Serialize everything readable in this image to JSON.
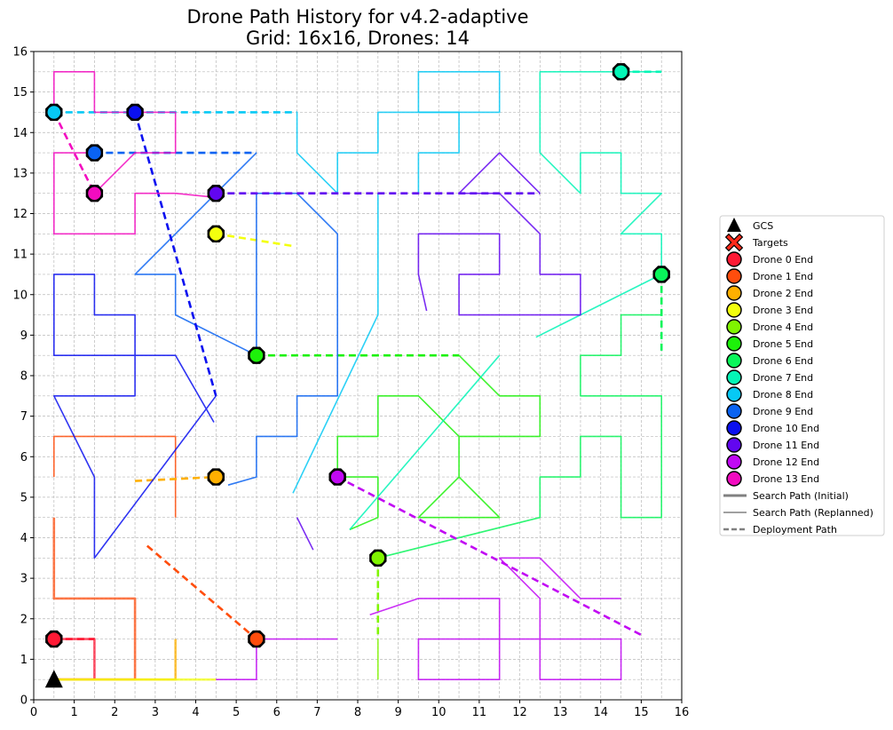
{
  "chart_data": {
    "type": "line",
    "title": "Drone Path History for v4.2-adaptive",
    "subtitle": "Grid: 16x16, Drones: 14",
    "xlim": [
      0,
      16
    ],
    "ylim": [
      0,
      16
    ],
    "xticks": [
      "0",
      "1",
      "2",
      "3",
      "4",
      "5",
      "6",
      "7",
      "8",
      "9",
      "10",
      "11",
      "12",
      "13",
      "14",
      "15",
      "16"
    ],
    "yticks": [
      "0",
      "1",
      "2",
      "3",
      "4",
      "5",
      "6",
      "7",
      "8",
      "9",
      "10",
      "11",
      "12",
      "13",
      "14",
      "15",
      "16"
    ],
    "grid": true,
    "legend_position": "right",
    "gcs": {
      "name": "GCS",
      "x": 0.5,
      "y": 0.5
    },
    "legend": [
      {
        "label": "GCS",
        "kind": "gcs"
      },
      {
        "label": "Targets",
        "kind": "target",
        "color": "#ff2a1a"
      },
      {
        "label": "Drone 0 End",
        "kind": "end",
        "color": "#ff1a35"
      },
      {
        "label": "Drone 1 End",
        "kind": "end",
        "color": "#ff4d0d"
      },
      {
        "label": "Drone 2 End",
        "kind": "end",
        "color": "#ffb000"
      },
      {
        "label": "Drone 3 End",
        "kind": "end",
        "color": "#f3ff0e"
      },
      {
        "label": "Drone 4 End",
        "kind": "end",
        "color": "#80f500"
      },
      {
        "label": "Drone 5 End",
        "kind": "end",
        "color": "#1df10a"
      },
      {
        "label": "Drone 6 End",
        "kind": "end",
        "color": "#09f55a"
      },
      {
        "label": "Drone 7 End",
        "kind": "end",
        "color": "#04f5b6"
      },
      {
        "label": "Drone 8 End",
        "kind": "end",
        "color": "#07c9f5"
      },
      {
        "label": "Drone 9 End",
        "kind": "end",
        "color": "#0a63f2"
      },
      {
        "label": "Drone 10 End",
        "kind": "end",
        "color": "#0b10f0"
      },
      {
        "label": "Drone 11 End",
        "kind": "end",
        "color": "#6206f0"
      },
      {
        "label": "Drone 12 End",
        "kind": "end",
        "color": "#c109f3"
      },
      {
        "label": "Drone 13 End",
        "kind": "end",
        "color": "#f20cc0"
      },
      {
        "label": "Search Path (Initial)",
        "kind": "line-thick"
      },
      {
        "label": "Search Path (Replanned)",
        "kind": "line-thin"
      },
      {
        "label": "Deployment Path",
        "kind": "line-dash"
      }
    ],
    "series": [
      {
        "color": "#ff1a35",
        "deploy": [
          [
            0.5,
            1.5
          ],
          [
            1.5,
            1.5
          ]
        ],
        "search": [
          [
            0.5,
            1.5
          ],
          [
            1.5,
            1.5
          ],
          [
            1.5,
            0.5
          ],
          [
            0.5,
            0.5
          ]
        ],
        "end": [
          0.5,
          1.5
        ]
      },
      {
        "color": "#ff4d0d",
        "deploy": [
          [
            2.8,
            3.8
          ],
          [
            5.5,
            1.5
          ]
        ],
        "search": [
          [
            0.5,
            4.5
          ],
          [
            0.5,
            2.5
          ],
          [
            2.5,
            2.5
          ],
          [
            2.5,
            0.5
          ],
          [
            0.5,
            0.5
          ]
        ],
        "replanned": [
          [
            0.5,
            5.5
          ],
          [
            0.5,
            6.5
          ],
          [
            3.5,
            6.5
          ],
          [
            3.5,
            4.5
          ]
        ],
        "end": [
          5.5,
          1.5
        ]
      },
      {
        "color": "#ffb000",
        "deploy": [
          [
            2.5,
            5.4
          ],
          [
            4.5,
            5.5
          ]
        ],
        "search": [
          [
            3.5,
            1.5
          ],
          [
            3.5,
            0.5
          ],
          [
            0.5,
            0.5
          ]
        ],
        "end": [
          4.5,
          5.5
        ]
      },
      {
        "color": "#f3ff0e",
        "deploy": [
          [
            4.5,
            11.5
          ],
          [
            6.4,
            11.2
          ]
        ],
        "search": [
          [
            4.5,
            0.5
          ],
          [
            0.5,
            0.5
          ]
        ],
        "end": [
          4.5,
          11.5
        ]
      },
      {
        "color": "#80f500",
        "deploy": [
          [
            8.5,
            3.5
          ],
          [
            8.5,
            1.5
          ]
        ],
        "replanned": [
          [
            8.5,
            1.5
          ],
          [
            8.5,
            0.5
          ]
        ],
        "end": [
          8.5,
          3.5
        ]
      },
      {
        "color": "#1df10a",
        "deploy": [
          [
            5.5,
            8.5
          ],
          [
            10.5,
            8.5
          ]
        ],
        "replanned": [
          [
            10.5,
            8.5
          ],
          [
            11.5,
            7.5
          ],
          [
            12.5,
            7.5
          ],
          [
            12.5,
            6.5
          ],
          [
            10.5,
            6.5
          ],
          [
            10.5,
            5.5
          ],
          [
            9.5,
            4.5
          ],
          [
            10.5,
            4.5
          ],
          [
            11.5,
            4.5
          ],
          [
            10.5,
            5.5
          ],
          [
            10.5,
            6.5
          ],
          [
            9.5,
            7.5
          ],
          [
            8.5,
            7.5
          ],
          [
            8.5,
            6.5
          ],
          [
            7.5,
            6.5
          ],
          [
            7.5,
            5.5
          ],
          [
            8.5,
            5.5
          ],
          [
            8.5,
            4.5
          ],
          [
            7.8,
            4.2
          ]
        ],
        "end": [
          5.5,
          8.5
        ]
      },
      {
        "color": "#09f55a",
        "deploy": [
          [
            15.5,
            10.5
          ],
          [
            15.5,
            8.5
          ]
        ],
        "replanned": [
          [
            15.5,
            9.5
          ],
          [
            14.5,
            9.5
          ],
          [
            14.5,
            8.5
          ],
          [
            13.5,
            8.5
          ],
          [
            13.5,
            7.5
          ],
          [
            15.5,
            7.5
          ],
          [
            15.5,
            4.5
          ],
          [
            14.5,
            4.5
          ],
          [
            14.5,
            6.5
          ],
          [
            13.5,
            6.5
          ],
          [
            13.5,
            5.5
          ],
          [
            12.5,
            5.5
          ],
          [
            12.5,
            4.5
          ],
          [
            8.5,
            3.5
          ]
        ],
        "end": [
          15.5,
          10.5
        ]
      },
      {
        "color": "#04f5b6",
        "deploy": [
          [
            14.5,
            15.5
          ],
          [
            15.5,
            15.5
          ]
        ],
        "replanned": [
          [
            15.5,
            15.5
          ],
          [
            12.5,
            15.5
          ],
          [
            12.5,
            13.5
          ],
          [
            13.5,
            12.5
          ],
          [
            13.5,
            13.5
          ],
          [
            14.5,
            13.5
          ],
          [
            14.5,
            12.5
          ],
          [
            15.5,
            12.5
          ],
          [
            14.5,
            11.5
          ],
          [
            15.5,
            11.5
          ],
          [
            15.5,
            10.5
          ],
          [
            12.4,
            8.95
          ]
        ],
        "extra": [
          [
            7.8,
            4.2
          ],
          [
            11.5,
            8.5
          ]
        ],
        "end": [
          14.5,
          15.5
        ]
      },
      {
        "color": "#07c9f5",
        "deploy": [
          [
            0.5,
            14.5
          ],
          [
            6.5,
            14.5
          ]
        ],
        "replanned": [
          [
            6.5,
            14.5
          ],
          [
            6.5,
            13.5
          ],
          [
            7.5,
            12.5
          ],
          [
            7.5,
            13.5
          ],
          [
            8.5,
            13.5
          ],
          [
            8.5,
            14.5
          ],
          [
            10.5,
            14.5
          ],
          [
            10.5,
            13.5
          ],
          [
            9.5,
            13.5
          ],
          [
            9.5,
            12.5
          ]
        ],
        "extra": [
          [
            8.5,
            12.5
          ],
          [
            8.5,
            9.5
          ],
          [
            6.4,
            5.1
          ]
        ],
        "extra2": [
          [
            9.5,
            14.5
          ],
          [
            9.5,
            15.5
          ],
          [
            11.5,
            15.5
          ],
          [
            11.5,
            14.5
          ],
          [
            9.5,
            14.5
          ]
        ],
        "end": [
          0.5,
          14.5
        ]
      },
      {
        "color": "#0a63f2",
        "deploy": [
          [
            1.5,
            13.5
          ],
          [
            5.5,
            13.5
          ]
        ],
        "replanned": [
          [
            5.5,
            13.5
          ],
          [
            4.5,
            12.5
          ],
          [
            2.5,
            10.5
          ],
          [
            3.5,
            10.5
          ],
          [
            3.5,
            9.5
          ],
          [
            5.5,
            8.5
          ],
          [
            5.5,
            12.5
          ],
          [
            6.5,
            12.5
          ],
          [
            7.5,
            11.5
          ],
          [
            7.5,
            7.5
          ],
          [
            6.5,
            7.5
          ],
          [
            6.5,
            6.5
          ],
          [
            5.5,
            6.5
          ],
          [
            5.5,
            5.5
          ],
          [
            4.8,
            5.3
          ]
        ],
        "end": [
          1.5,
          13.5
        ]
      },
      {
        "color": "#0b10f0",
        "deploy": [
          [
            2.5,
            14.5
          ],
          [
            4.5,
            7.5
          ]
        ],
        "replanned": [
          [
            4.5,
            7.5
          ],
          [
            1.5,
            3.5
          ],
          [
            1.5,
            5.5
          ],
          [
            0.5,
            7.5
          ],
          [
            2.5,
            7.5
          ],
          [
            2.5,
            9.5
          ],
          [
            1.5,
            9.5
          ],
          [
            1.5,
            10.5
          ],
          [
            0.5,
            10.5
          ],
          [
            0.5,
            8.5
          ],
          [
            3.5,
            8.5
          ],
          [
            4.45,
            6.85
          ]
        ],
        "end": [
          2.5,
          14.5
        ]
      },
      {
        "color": "#6206f0",
        "deploy": [
          [
            4.5,
            12.5
          ],
          [
            12.5,
            12.5
          ]
        ],
        "replanned": [
          [
            12.5,
            12.5
          ],
          [
            11.5,
            13.5
          ],
          [
            10.5,
            12.5
          ],
          [
            11.5,
            12.5
          ],
          [
            12.5,
            11.5
          ],
          [
            12.5,
            10.5
          ],
          [
            13.5,
            10.5
          ],
          [
            13.5,
            9.5
          ],
          [
            10.5,
            9.5
          ],
          [
            10.5,
            10.5
          ],
          [
            11.5,
            10.5
          ],
          [
            11.5,
            11.5
          ],
          [
            9.5,
            11.5
          ],
          [
            9.5,
            10.5
          ],
          [
            9.7,
            9.6
          ]
        ],
        "extra": [
          [
            6.5,
            4.5
          ],
          [
            6.9,
            3.7
          ]
        ],
        "end": [
          4.5,
          12.5
        ]
      },
      {
        "color": "#c109f3",
        "deploy": [
          [
            7.5,
            5.5
          ],
          [
            15.0,
            1.6
          ]
        ],
        "replanned": [
          [
            14.5,
            2.5
          ],
          [
            13.5,
            2.5
          ],
          [
            12.5,
            3.5
          ],
          [
            11.5,
            3.5
          ],
          [
            12.5,
            2.5
          ],
          [
            12.5,
            0.5
          ],
          [
            14.5,
            0.5
          ],
          [
            14.5,
            1.5
          ],
          [
            9.5,
            1.5
          ],
          [
            9.5,
            0.5
          ],
          [
            11.5,
            0.5
          ],
          [
            11.5,
            2.5
          ],
          [
            9.5,
            2.5
          ],
          [
            8.3,
            2.1
          ]
        ],
        "extra": [
          [
            5.5,
            1.5
          ],
          [
            7.5,
            1.5
          ]
        ],
        "extra2": [
          [
            5.5,
            1.5
          ],
          [
            5.5,
            0.5
          ],
          [
            4.5,
            0.5
          ]
        ],
        "end": [
          7.5,
          5.5
        ]
      },
      {
        "color": "#f20cc0",
        "deploy": [
          [
            0.5,
            14.5
          ],
          [
            1.5,
            12.5
          ]
        ],
        "replanned": [
          [
            1.5,
            12.5
          ],
          [
            2.5,
            13.5
          ],
          [
            3.5,
            13.5
          ],
          [
            3.5,
            14.5
          ],
          [
            1.5,
            14.5
          ],
          [
            1.5,
            15.5
          ],
          [
            0.5,
            15.5
          ],
          [
            0.5,
            14.5
          ]
        ],
        "extra": [
          [
            4.5,
            12.4
          ],
          [
            3.5,
            12.5
          ],
          [
            2.5,
            12.5
          ],
          [
            2.5,
            11.5
          ],
          [
            0.5,
            11.5
          ],
          [
            0.5,
            13.5
          ],
          [
            1.5,
            13.5
          ]
        ],
        "end": [
          1.5,
          12.5
        ]
      }
    ]
  }
}
